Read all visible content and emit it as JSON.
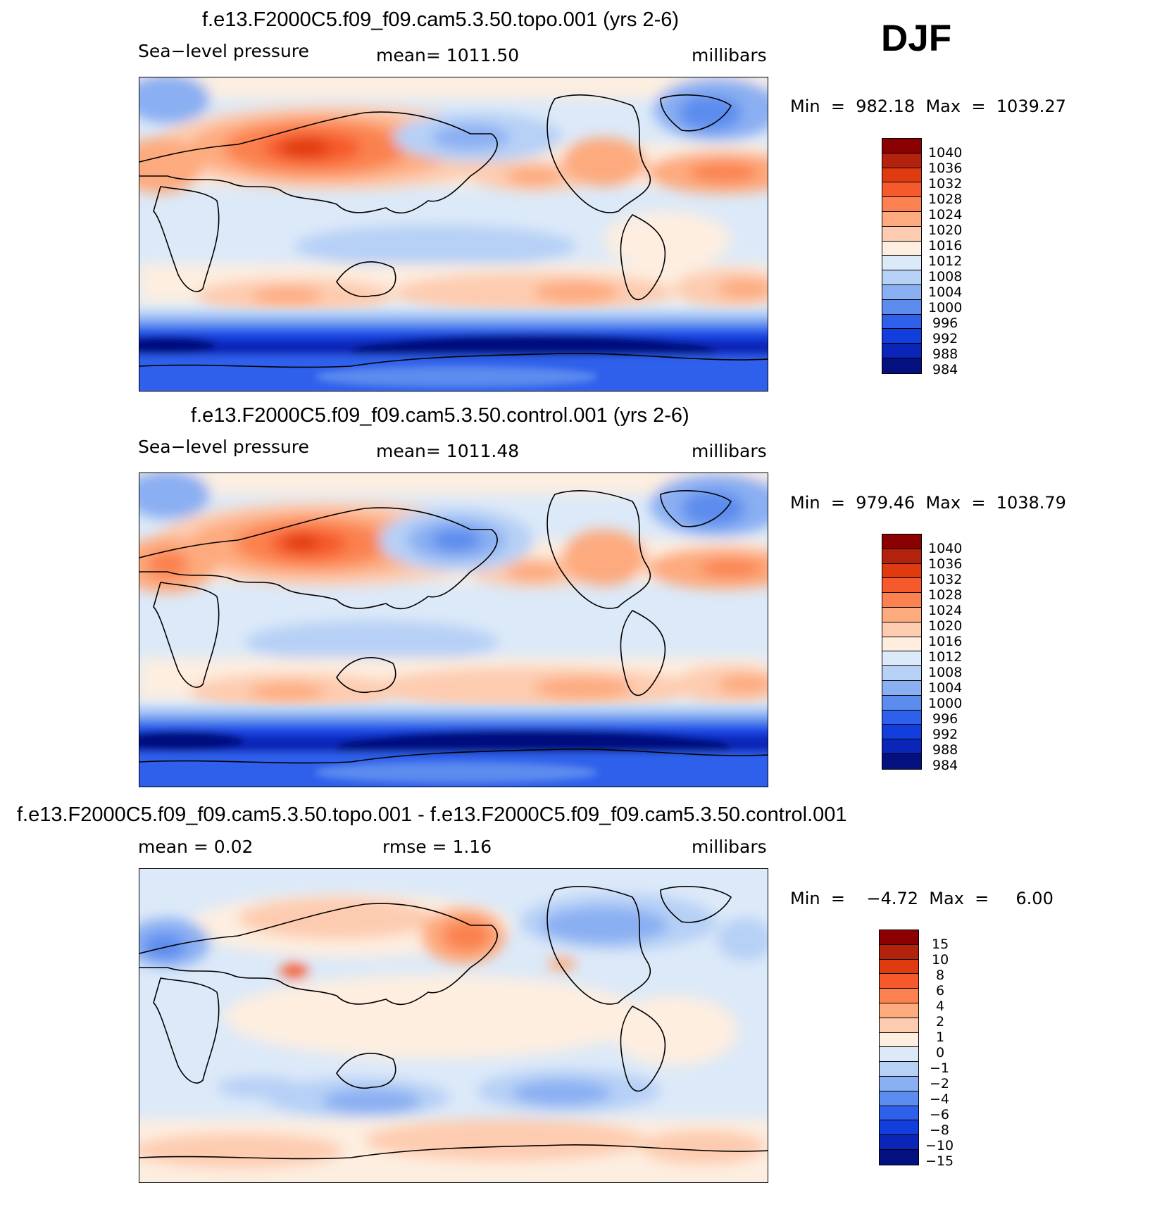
{
  "season_label": "DJF",
  "panels": [
    {
      "title": "f.e13.F2000C5.f09_f09.cam5.3.50.topo.001 (yrs 2-6)",
      "field_label": "Sea−level  pressure",
      "stat_label": "mean=  1011.50",
      "units": "millibars",
      "minmax": "Min  =  982.18  Max  =  1039.27",
      "colorbar_labels": [
        "1040",
        "1036",
        "1032",
        "1028",
        "1024",
        "1020",
        "1016",
        "1012",
        "1008",
        "1004",
        "1000",
        "996",
        "992",
        "988",
        "984"
      ]
    },
    {
      "title": "f.e13.F2000C5.f09_f09.cam5.3.50.control.001 (yrs 2-6)",
      "field_label": "Sea−level  pressure",
      "stat_label": "mean=  1011.48",
      "units": "millibars",
      "minmax": "Min  =  979.46  Max  =  1038.79",
      "colorbar_labels": [
        "1040",
        "1036",
        "1032",
        "1028",
        "1024",
        "1020",
        "1016",
        "1012",
        "1008",
        "1004",
        "1000",
        "996",
        "992",
        "988",
        "984"
      ]
    },
    {
      "title": "f.e13.F2000C5.f09_f09.cam5.3.50.topo.001 - f.e13.F2000C5.f09_f09.cam5.3.50.control.001",
      "mean_label": "mean  =     0.02",
      "rmse_label": "rmse  =     1.16",
      "units": "millibars",
      "minmax": "Min  =    −4.72  Max  =     6.00",
      "colorbar_labels": [
        "15",
        "10",
        "8",
        "6",
        "4",
        "2",
        "1",
        "0",
        "−1",
        "−2",
        "−4",
        "−6",
        "−8",
        "−10",
        "−15"
      ]
    }
  ],
  "colorbar_colors": [
    "#8b0000",
    "#b3220c",
    "#e03a10",
    "#f65a2c",
    "#fb8250",
    "#fdaa7e",
    "#fdccb0",
    "#fdeee0",
    "#dce9f8",
    "#b6d0f6",
    "#8aaff2",
    "#5b8cee",
    "#2f60eb",
    "#123ede",
    "#0a25b8",
    "#04107f"
  ]
}
